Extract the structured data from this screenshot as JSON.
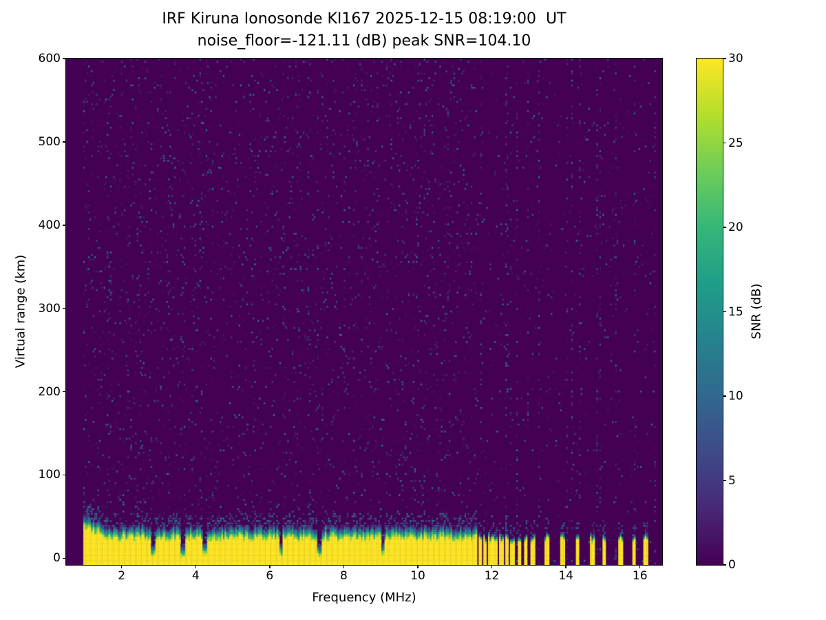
{
  "chart_data": {
    "type": "heatmap",
    "title": "IRF Kiruna Ionosonde KI167 2025-12-15 08:19:00  UT",
    "subtitle": "noise_floor=-121.11 (dB) peak SNR=104.10",
    "xlabel": "Frequency (MHz)",
    "ylabel": "Virtual range (km)",
    "xlim": [
      0.5,
      16.6
    ],
    "ylim": [
      -8,
      600
    ],
    "xticks": [
      2,
      4,
      6,
      8,
      10,
      12,
      14,
      16
    ],
    "yticks": [
      0,
      100,
      200,
      300,
      400,
      500,
      600
    ],
    "grid": false,
    "colormap": "viridis",
    "colorbar": {
      "label": "SNR (dB)",
      "min": 0,
      "max": 30,
      "ticks": [
        0,
        5,
        10,
        15,
        20,
        25,
        30
      ],
      "position": "right"
    },
    "station": "IRF Kiruna Ionosonde KI167",
    "timestamp_ut": "2025-12-15 08:19:00",
    "noise_floor_db": -121.11,
    "peak_snr_db": 104.1,
    "features": {
      "sweep_start_mhz": 0.95,
      "sweep_end_mhz": 16.45,
      "background_color_value_db": 0,
      "ground_echo": {
        "snr_db": 30,
        "yellow_top_km": 22,
        "fringe_top_km": 38,
        "continuous_below_mhz": 11.6,
        "raised_top_below_mhz": 1.7
      },
      "band_notches_mhz": [
        2.85,
        3.65,
        4.25,
        6.3,
        7.35,
        9.05
      ],
      "intermittent_stripes": [
        {
          "f": 11.68,
          "w": 0.07
        },
        {
          "f": 11.82,
          "w": 0.07
        },
        {
          "f": 11.96,
          "w": 0.07
        },
        {
          "f": 12.1,
          "w": 0.07
        },
        {
          "f": 12.25,
          "w": 0.07
        },
        {
          "f": 12.4,
          "w": 0.07
        },
        {
          "f": 12.56,
          "w": 0.07
        },
        {
          "f": 12.74,
          "w": 0.07
        },
        {
          "f": 12.92,
          "w": 0.07
        },
        {
          "f": 13.1,
          "w": 0.07
        },
        {
          "f": 13.48,
          "w": 0.07
        },
        {
          "f": 13.92,
          "w": 0.07
        },
        {
          "f": 14.32,
          "w": 0.07
        },
        {
          "f": 14.72,
          "w": 0.06
        },
        {
          "f": 15.02,
          "w": 0.06
        },
        {
          "f": 15.48,
          "w": 0.07
        },
        {
          "f": 15.85,
          "w": 0.06
        },
        {
          "f": 16.15,
          "w": 0.07
        }
      ],
      "background_speckle": {
        "snr_db_min": 1,
        "snr_db_max": 14,
        "density": 0.05
      },
      "noise_seed": 167
    }
  }
}
